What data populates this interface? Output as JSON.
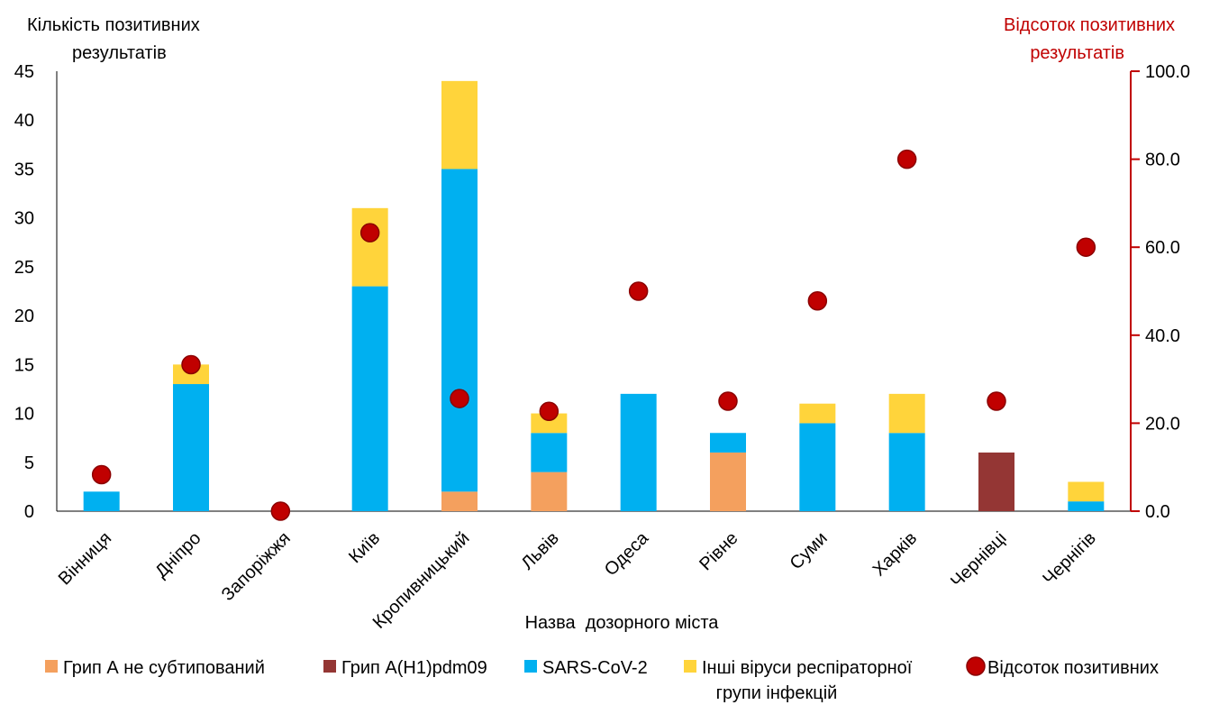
{
  "chart_data": {
    "type": "bar",
    "stacked": true,
    "xlabel": "Назва  дозорного міста",
    "ylabel_left": [
      "Кількість позитивних",
      "результатів"
    ],
    "ylabel_right": [
      "Відсоток позитивних",
      "результатів"
    ],
    "categories": [
      "Вінниця",
      "Дніпро",
      "Запоріжжя",
      "Київ",
      "Кропивницький",
      "Львів",
      "Одеса",
      "Рівне",
      "Суми",
      "Харків",
      "Чернівці",
      "Чернігів"
    ],
    "ylim_left": [
      0,
      45
    ],
    "yticks_left": [
      "0",
      "5",
      "10",
      "15",
      "20",
      "25",
      "30",
      "35",
      "40",
      "45"
    ],
    "ylim_right": [
      0,
      100
    ],
    "yticks_right": [
      "0.0",
      "20.0",
      "40.0",
      "60.0",
      "80.0",
      "100.0"
    ],
    "series": [
      {
        "name": "Грип А не субтипований",
        "color": "#F4A05E",
        "values": [
          0,
          0,
          0,
          0,
          2,
          4,
          0,
          6,
          0,
          0,
          0,
          0
        ]
      },
      {
        "name": "Грип А(H1)pdm09",
        "color": "#943634",
        "values": [
          0,
          0,
          0,
          0,
          0,
          0,
          0,
          0,
          0,
          0,
          6,
          0
        ]
      },
      {
        "name": "SARS-CoV-2",
        "color": "#00B0F0",
        "values": [
          2,
          13,
          0,
          23,
          33,
          4,
          12,
          2,
          9,
          8,
          0,
          1
        ]
      },
      {
        "name": "Інші віруси респіраторної групи інфекцій",
        "legend_lines": [
          "Інші віруси респіраторної",
          "групи інфекцій"
        ],
        "color": "#FFD43B",
        "values": [
          0,
          2,
          0,
          8,
          9,
          2,
          0,
          0,
          2,
          4,
          0,
          2
        ]
      }
    ],
    "percent_series": {
      "name": "Відсоток позитивних",
      "color": "#C00000",
      "axis": "right",
      "values": [
        8.3,
        33.3,
        0.0,
        63.3,
        25.6,
        22.7,
        50.0,
        25.0,
        47.8,
        80.0,
        25.0,
        60.0
      ]
    },
    "grid": false,
    "legend_position": "bottom"
  }
}
